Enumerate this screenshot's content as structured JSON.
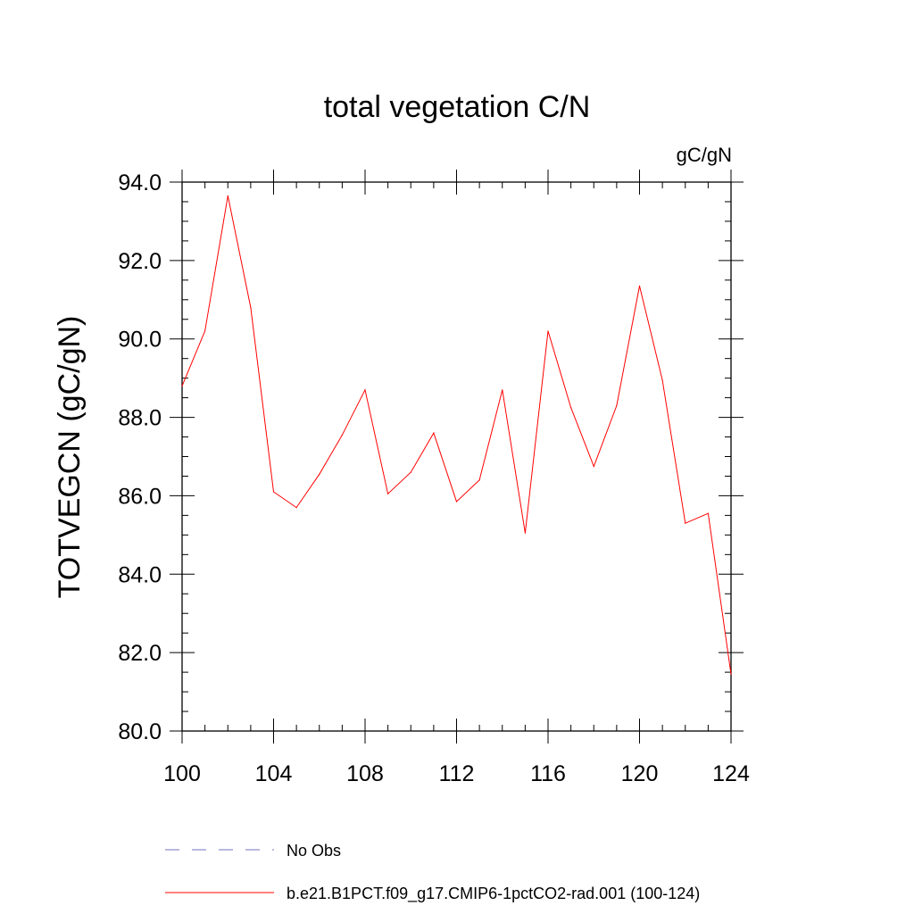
{
  "chart_data": {
    "type": "line",
    "title": "total vegetation C/N",
    "units": "gC/gN",
    "ylabel": "TOTVEGCN  (gC/gN)",
    "xlabel": "",
    "xlim": [
      100,
      124
    ],
    "ylim": [
      80,
      94
    ],
    "xticks": [
      "100",
      "104",
      "108",
      "112",
      "116",
      "120",
      "124"
    ],
    "yticks": [
      "80.0",
      "82.0",
      "84.0",
      "86.0",
      "88.0",
      "90.0",
      "92.0",
      "94.0"
    ],
    "grid": false,
    "legend_position": "bottom",
    "series": [
      {
        "name": "b.e21.B1PCT.f09_g17.CMIP6-1pctCO2-rad.001 (100-124)",
        "color": "#ff0000",
        "style": "solid",
        "x": [
          100,
          101,
          102,
          103,
          104,
          105,
          106,
          107,
          108,
          109,
          110,
          111,
          112,
          113,
          114,
          115,
          116,
          117,
          118,
          119,
          120,
          121,
          122,
          123,
          124
        ],
        "y": [
          88.8,
          90.2,
          93.65,
          90.8,
          86.1,
          85.7,
          86.55,
          87.55,
          88.7,
          86.05,
          86.6,
          87.6,
          85.85,
          86.4,
          88.7,
          85.05,
          90.2,
          88.25,
          86.75,
          88.3,
          91.35,
          88.95,
          85.3,
          85.55,
          81.45
        ]
      }
    ],
    "legend": [
      {
        "label": "No Obs",
        "color": "#7070c0",
        "style": "dashed"
      },
      {
        "label": "b.e21.B1PCT.f09_g17.CMIP6-1pctCO2-rad.001 (100-124)",
        "color": "#ff0000",
        "style": "solid"
      }
    ]
  }
}
